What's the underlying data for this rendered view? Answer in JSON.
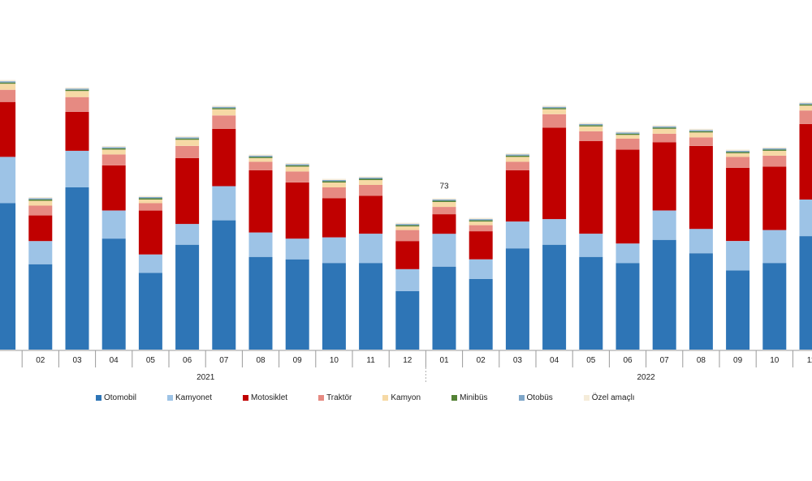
{
  "chart_data": {
    "type": "bar",
    "stacked": true,
    "categories": [
      "01",
      "02",
      "03",
      "04",
      "05",
      "06",
      "07",
      "08",
      "09",
      "10",
      "11",
      "12",
      "01",
      "02",
      "03",
      "04",
      "05",
      "06",
      "07",
      "08",
      "09",
      "10",
      "11",
      "12"
    ],
    "visible_category_labels": [
      "",
      "02",
      "03",
      "04",
      "05",
      "06",
      "07",
      "08",
      "09",
      "10",
      "11",
      "12",
      "01",
      "02",
      "03",
      "04",
      "05",
      "06",
      "07",
      "08",
      "09",
      "10",
      "11",
      ""
    ],
    "year_groups": [
      {
        "label": "2021",
        "start": 0,
        "end": 11
      },
      {
        "label": "2022",
        "start": 12,
        "end": 23
      }
    ],
    "ylim": [
      0,
      260
    ],
    "grid": false,
    "legend_position": "bottom",
    "series": [
      {
        "name": "Otomobil",
        "color": "#2e75b6",
        "values": [
          120,
          70,
          133,
          91,
          63,
          86,
          106,
          76,
          74,
          71,
          71,
          48,
          68,
          58,
          83,
          86,
          76,
          71,
          90,
          79,
          65,
          71,
          93,
          94
        ]
      },
      {
        "name": "Kamyonet",
        "color": "#9dc3e6",
        "values": [
          38,
          19,
          30,
          23,
          15,
          17,
          28,
          20,
          17,
          21,
          24,
          18,
          27,
          16,
          22,
          21,
          19,
          16,
          24,
          20,
          24,
          27,
          30,
          29
        ]
      },
      {
        "name": "Motosiklet",
        "color": "#c00000",
        "values": [
          45,
          21,
          32,
          37,
          36,
          54,
          47,
          51,
          46,
          32,
          31,
          23,
          16,
          23,
          42,
          75,
          76,
          77,
          56,
          68,
          60,
          52,
          62,
          110
        ]
      },
      {
        "name": "Traktör",
        "color": "#e68a82",
        "values": [
          10,
          8,
          12,
          9,
          6,
          10,
          11,
          7,
          9,
          9,
          9,
          9,
          6,
          5,
          7,
          11,
          8,
          9,
          7,
          7,
          9,
          9,
          11,
          11
        ]
      },
      {
        "name": "Kamyon",
        "color": "#f6d9a5",
        "values": [
          5,
          4,
          5,
          4,
          3,
          5,
          5,
          3,
          4,
          4,
          4,
          3,
          4,
          3,
          4,
          4,
          4,
          3,
          4,
          4,
          3,
          4,
          4,
          4
        ]
      },
      {
        "name": "Minibüs",
        "color": "#548235",
        "values": [
          1,
          1,
          1,
          1,
          1,
          1,
          1,
          1,
          1,
          1,
          1,
          1,
          1,
          1,
          1,
          1,
          1,
          1,
          1,
          1,
          1,
          1,
          1,
          1
        ]
      },
      {
        "name": "Otobüs",
        "color": "#7fa6c8",
        "values": [
          1,
          1,
          1,
          1,
          1,
          1,
          1,
          1,
          1,
          1,
          1,
          1,
          1,
          1,
          1,
          1,
          1,
          1,
          1,
          1,
          1,
          1,
          1,
          1
        ]
      },
      {
        "name": "Özel amaçlı",
        "color": "#f5ecd9",
        "values": [
          1,
          1,
          1,
          1,
          1,
          1,
          1,
          1,
          1,
          1,
          1,
          1,
          1,
          1,
          1,
          1,
          1,
          1,
          1,
          1,
          1,
          1,
          1,
          1
        ]
      }
    ],
    "annotations": [
      {
        "category_index": 12,
        "text": "73"
      }
    ]
  }
}
